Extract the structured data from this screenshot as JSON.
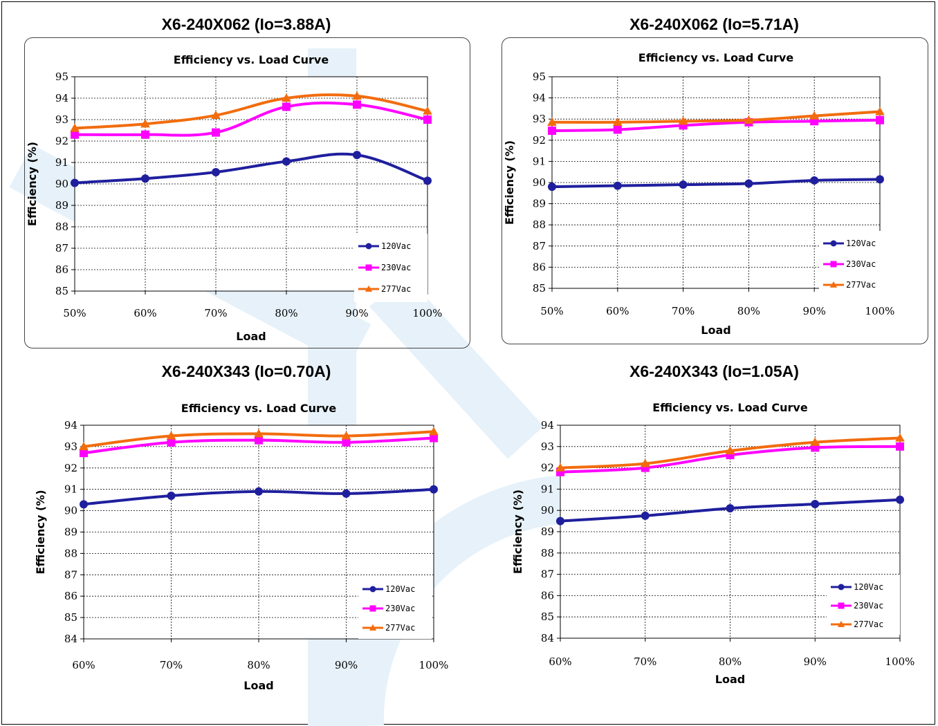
{
  "colors": {
    "series_120": "#1f1f9e",
    "series_230": "#ff00ff",
    "series_277": "#f26c0d",
    "watermark": "#e6f1f9"
  },
  "panels": [
    {
      "heading": "X6-240X062 (Io=3.88A)",
      "chart_data": {
        "type": "line",
        "title": "Efficiency vs. Load Curve",
        "xlabel": "Load",
        "ylabel": "Efficiency (%)",
        "categories": [
          "50%",
          "60%",
          "70%",
          "80%",
          "90%",
          "100%"
        ],
        "ylim": [
          85,
          95
        ],
        "yticks": [
          85,
          86,
          87,
          88,
          89,
          90,
          91,
          92,
          93,
          94,
          95
        ],
        "grid": true,
        "legend_position": "bottom-right",
        "series": [
          {
            "name": "120Vac",
            "marker": "circle",
            "values": [
              90.05,
              90.25,
              90.55,
              91.05,
              91.35,
              90.15
            ]
          },
          {
            "name": "230Vac",
            "marker": "square",
            "values": [
              92.3,
              92.3,
              92.4,
              93.6,
              93.7,
              93.0
            ]
          },
          {
            "name": "277Vac",
            "marker": "triangle",
            "values": [
              92.6,
              92.8,
              93.2,
              94.0,
              94.1,
              93.4
            ]
          }
        ]
      }
    },
    {
      "heading": "X6-240X062 (Io=5.71A)",
      "chart_data": {
        "type": "line",
        "title": "Efficiency vs. Load Curve",
        "xlabel": "Load",
        "ylabel": "Efficiency (%)",
        "categories": [
          "50%",
          "60%",
          "70%",
          "80%",
          "90%",
          "100%"
        ],
        "ylim": [
          85,
          95
        ],
        "yticks": [
          85,
          86,
          87,
          88,
          89,
          90,
          91,
          92,
          93,
          94,
          95
        ],
        "grid": true,
        "legend_position": "bottom-right",
        "series": [
          {
            "name": "120Vac",
            "marker": "circle",
            "values": [
              89.8,
              89.85,
              89.9,
              89.95,
              90.1,
              90.15
            ]
          },
          {
            "name": "230Vac",
            "marker": "square",
            "values": [
              92.45,
              92.5,
              92.7,
              92.85,
              92.9,
              92.95
            ]
          },
          {
            "name": "277Vac",
            "marker": "triangle",
            "values": [
              92.85,
              92.85,
              92.9,
              92.95,
              93.15,
              93.35
            ]
          }
        ]
      }
    },
    {
      "heading": "X6-240X343 (Io=0.70A)",
      "chart_data": {
        "type": "line",
        "title": "Efficiency vs. Load Curve",
        "xlabel": "Load",
        "ylabel": "Efficiency (%)",
        "categories": [
          "60%",
          "70%",
          "80%",
          "90%",
          "100%"
        ],
        "ylim": [
          84,
          94
        ],
        "yticks": [
          84,
          85,
          86,
          87,
          88,
          89,
          90,
          91,
          92,
          93,
          94
        ],
        "grid": true,
        "legend_position": "bottom-right",
        "series": [
          {
            "name": "120Vac",
            "marker": "circle",
            "values": [
              90.3,
              90.7,
              90.9,
              90.8,
              91.0
            ]
          },
          {
            "name": "230Vac",
            "marker": "square",
            "values": [
              92.7,
              93.2,
              93.3,
              93.2,
              93.4
            ]
          },
          {
            "name": "277Vac",
            "marker": "triangle",
            "values": [
              93.0,
              93.5,
              93.6,
              93.5,
              93.7
            ]
          }
        ]
      }
    },
    {
      "heading": "X6-240X343 (Io=1.05A)",
      "chart_data": {
        "type": "line",
        "title": "Efficiency vs. Load Curve",
        "xlabel": "Load",
        "ylabel": "Efficiency (%)",
        "categories": [
          "60%",
          "70%",
          "80%",
          "90%",
          "100%"
        ],
        "ylim": [
          84,
          94
        ],
        "yticks": [
          84,
          85,
          86,
          87,
          88,
          89,
          90,
          91,
          92,
          93,
          94
        ],
        "grid": true,
        "legend_position": "bottom-right",
        "series": [
          {
            "name": "120Vac",
            "marker": "circle",
            "values": [
              89.5,
              89.75,
              90.1,
              90.3,
              90.5
            ]
          },
          {
            "name": "230Vac",
            "marker": "square",
            "values": [
              91.8,
              92.0,
              92.6,
              92.95,
              93.0
            ]
          },
          {
            "name": "277Vac",
            "marker": "triangle",
            "values": [
              92.0,
              92.2,
              92.8,
              93.2,
              93.4
            ]
          }
        ]
      }
    }
  ]
}
